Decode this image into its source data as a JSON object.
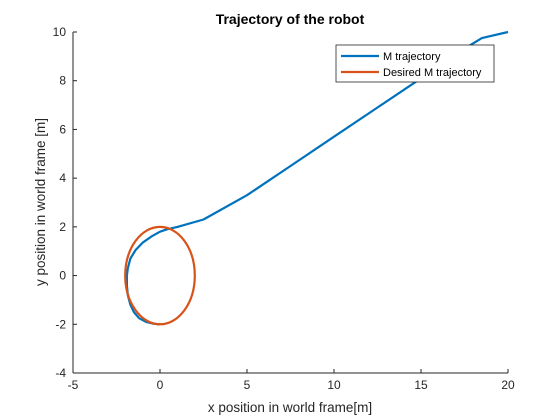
{
  "chart_data": {
    "type": "line",
    "title": "Trajectory of the robot",
    "xlabel": "x position in world frame[m]",
    "ylabel": "y position in world frame [m]",
    "xlim": [
      -5,
      20
    ],
    "ylim": [
      -4,
      10
    ],
    "xticks": [
      -5,
      0,
      5,
      10,
      15,
      20
    ],
    "yticks": [
      -4,
      -2,
      0,
      2,
      4,
      6,
      8,
      10
    ],
    "grid": false,
    "legend_position": "top-right",
    "series": [
      {
        "name": "M trajectory",
        "color": "#0072BD",
        "x": [
          20,
          18.5,
          17,
          15,
          12.5,
          10,
          7.5,
          5,
          2.5,
          1.0,
          0.4,
          0.0,
          -0.5,
          -1.0,
          -1.4,
          -1.7,
          -1.85,
          -1.9,
          -1.9,
          -1.85,
          -1.7,
          -1.5,
          -1.2,
          -0.8,
          -0.4,
          0.0
        ],
        "y": [
          10,
          9.75,
          9.1,
          8.1,
          6.9,
          5.7,
          4.5,
          3.3,
          2.3,
          2.0,
          1.9,
          1.8,
          1.6,
          1.35,
          1.05,
          0.7,
          0.3,
          0.0,
          -0.4,
          -0.8,
          -1.2,
          -1.5,
          -1.75,
          -1.9,
          -1.97,
          -2.0
        ]
      },
      {
        "name": "Desired M trajectory",
        "color": "#D95319",
        "shape": "ellipse",
        "center": [
          0,
          0
        ],
        "radius_x": 2,
        "radius_y": 2
      }
    ]
  }
}
